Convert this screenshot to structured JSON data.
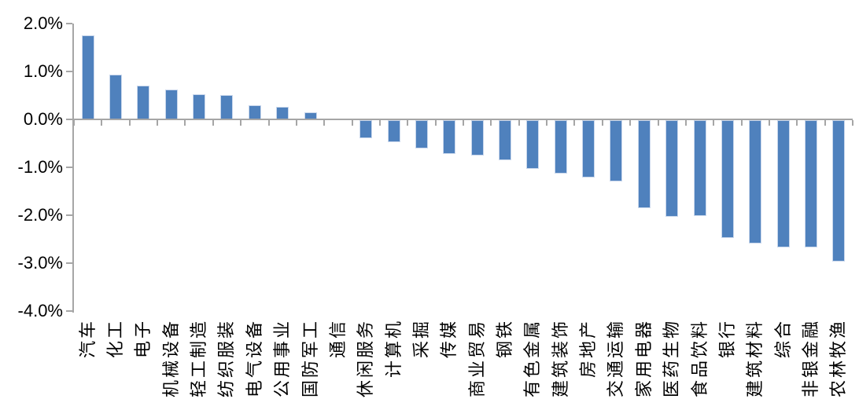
{
  "chart_data": {
    "type": "bar",
    "title": "",
    "xlabel": "",
    "ylabel": "",
    "value_unit": "percent",
    "categories": [
      "汽车",
      "化工",
      "电子",
      "机械设备",
      "轻工制造",
      "纺织服装",
      "电气设备",
      "公用事业",
      "国防军工",
      "通信",
      "休闲服务",
      "计算机",
      "采掘",
      "传媒",
      "商业贸易",
      "钢铁",
      "有色金属",
      "建筑装饰",
      "房地产",
      "交通运输",
      "家用电器",
      "医药生物",
      "食品饮料",
      "银行",
      "建筑材料",
      "综合",
      "非银金融",
      "农林牧渔"
    ],
    "values": [
      1.75,
      0.93,
      0.7,
      0.62,
      0.53,
      0.51,
      0.29,
      0.27,
      0.15,
      0.0,
      -0.37,
      -0.46,
      -0.59,
      -0.7,
      -0.73,
      -0.83,
      -1.02,
      -1.11,
      -1.2,
      -1.27,
      -1.84,
      -2.01,
      -2.0,
      -2.46,
      -2.57,
      -2.66,
      -2.66,
      -2.95
    ],
    "ylim": [
      -4.0,
      2.0
    ],
    "yticks": [
      2.0,
      1.0,
      0.0,
      -1.0,
      -2.0,
      -3.0,
      -4.0
    ],
    "ytick_labels": [
      "2.0%",
      "1.0%",
      "0.0%",
      "-1.0%",
      "-2.0%",
      "-3.0%",
      "-4.0%"
    ],
    "grid": false,
    "legend": "none",
    "bar_color": "#4F81BD",
    "bar_edge_color": "#C9D7EC",
    "axis_color": "#A6A6A6",
    "text_color": "#000000"
  }
}
